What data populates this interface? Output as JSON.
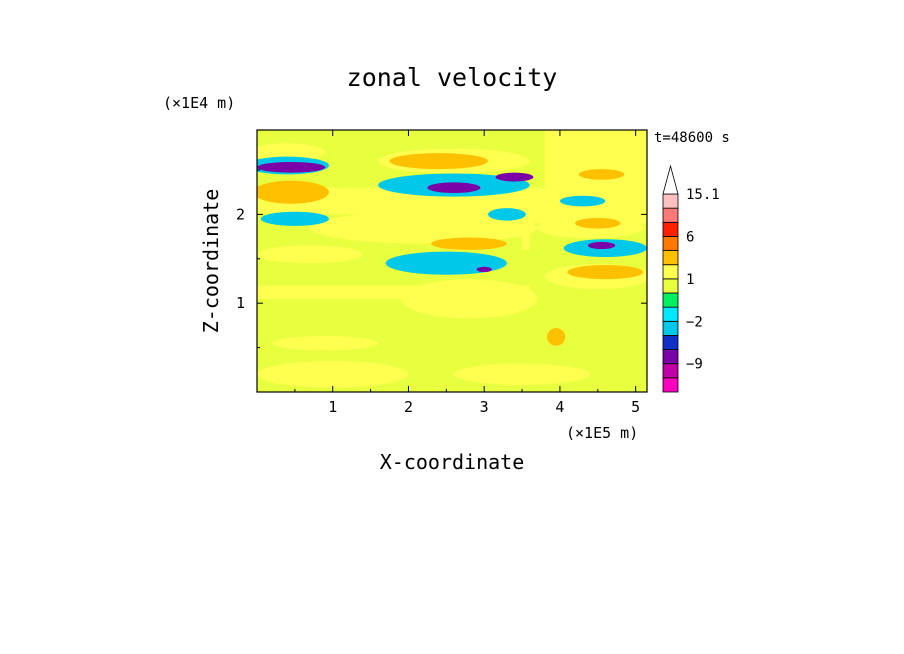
{
  "chart_data": {
    "type": "heatmap",
    "title": "zonal velocity",
    "xlabel": "X-coordinate",
    "ylabel": "Z-coordinate",
    "x_unit": "(×1E5 m)",
    "y_unit": "(×1E4 m)",
    "time_label": "t=48600 s",
    "xlim": [
      0,
      5.15
    ],
    "ylim": [
      0,
      2.95
    ],
    "x_ticks": [
      1,
      2,
      3,
      4,
      5
    ],
    "y_ticks": [
      1,
      2
    ],
    "x_tick_labels": [
      "1",
      "2",
      "3",
      "4",
      "5"
    ],
    "y_tick_labels": [
      "1",
      "2"
    ],
    "colorbar": {
      "levels": [
        -15,
        -12,
        -9,
        -6,
        -3,
        -2,
        -1,
        0,
        1,
        2,
        3,
        6,
        9,
        12,
        15.1
      ],
      "colors": [
        "#ff00c0",
        "#c000a8",
        "#7a00a8",
        "#1030c8",
        "#00c8e8",
        "#00e8ff",
        "#00f060",
        "#e8ff40",
        "#ffff50",
        "#ffc000",
        "#ff7800",
        "#ff2000",
        "#ff7878",
        "#ffc0c0",
        "#ffffff"
      ],
      "labels": [
        {
          "value": 15.1,
          "text": "15.1"
        },
        {
          "value": 6,
          "text": "6"
        },
        {
          "value": 1,
          "text": "1"
        },
        {
          "value": -2,
          "text": "−2"
        },
        {
          "value": -9,
          "text": "−9"
        }
      ]
    },
    "background_value": 1,
    "features": [
      {
        "x": [
          0.0,
          5.15
        ],
        "z": [
          0.0,
          0.1
        ],
        "value": 0.5
      },
      {
        "x": [
          0.0,
          1.6
        ],
        "z": [
          0.1,
          0.38
        ],
        "value": 0.5
      },
      {
        "x": [
          1.4,
          5.15
        ],
        "z": [
          0.1,
          0.5
        ],
        "value": 0.5
      },
      {
        "x": [
          0.0,
          5.15
        ],
        "z": [
          0.38,
          1.05
        ],
        "value": 0.5
      },
      {
        "x": [
          0.0,
          5.15
        ],
        "z": [
          1.2,
          1.6
        ],
        "value": 0.5
      },
      {
        "x": [
          0.0,
          3.5
        ],
        "z": [
          1.6,
          2.0
        ],
        "value": 0.5
      },
      {
        "x": [
          0.0,
          3.8
        ],
        "z": [
          2.3,
          2.95
        ],
        "value": 0.5
      },
      {
        "x": [
          3.6,
          5.15
        ],
        "z": [
          0.8,
          1.9
        ],
        "value": 0.5
      },
      {
        "cx": 1.0,
        "cz": 0.2,
        "rx": 1.0,
        "rz": 0.15,
        "value": 1.5
      },
      {
        "cx": 3.5,
        "cz": 0.2,
        "rx": 0.9,
        "rz": 0.12,
        "value": 1.5
      },
      {
        "cx": 0.9,
        "cz": 0.55,
        "rx": 0.7,
        "rz": 0.08,
        "value": 1.5
      },
      {
        "cx": 2.8,
        "cz": 1.05,
        "rx": 0.9,
        "rz": 0.22,
        "value": 1.5
      },
      {
        "cx": 0.7,
        "cz": 1.55,
        "rx": 0.7,
        "rz": 0.1,
        "value": 1.5
      },
      {
        "cx": 2.2,
        "cz": 1.85,
        "rx": 1.5,
        "rz": 0.18,
        "value": 1.5
      },
      {
        "cx": 0.4,
        "cz": 2.7,
        "rx": 0.5,
        "rz": 0.1,
        "value": 1.5
      },
      {
        "cx": 2.6,
        "cz": 2.6,
        "rx": 1.0,
        "rz": 0.14,
        "value": 1.5
      },
      {
        "cx": 4.5,
        "cz": 2.4,
        "rx": 0.6,
        "rz": 0.1,
        "value": 1.5
      },
      {
        "cx": 4.4,
        "cz": 1.85,
        "rx": 0.7,
        "rz": 0.12,
        "value": 1.5
      },
      {
        "cx": 4.5,
        "cz": 1.3,
        "rx": 0.7,
        "rz": 0.14,
        "value": 1.5
      },
      {
        "cx": 0.45,
        "cz": 2.25,
        "rx": 0.5,
        "rz": 0.13,
        "value": 2.5
      },
      {
        "cx": 2.4,
        "cz": 2.6,
        "rx": 0.65,
        "rz": 0.09,
        "value": 2.5
      },
      {
        "cx": 2.8,
        "cz": 1.67,
        "rx": 0.5,
        "rz": 0.07,
        "value": 2.5
      },
      {
        "cx": 4.55,
        "cz": 2.45,
        "rx": 0.3,
        "rz": 0.06,
        "value": 2.5
      },
      {
        "cx": 4.5,
        "cz": 1.9,
        "rx": 0.3,
        "rz": 0.06,
        "value": 2.5
      },
      {
        "cx": 4.6,
        "cz": 1.35,
        "rx": 0.5,
        "rz": 0.08,
        "value": 2.5
      },
      {
        "cx": 3.95,
        "cz": 0.62,
        "rx": 0.12,
        "rz": 0.1,
        "value": 2.5
      },
      {
        "cx": 0.4,
        "cz": 2.55,
        "rx": 0.55,
        "rz": 0.1,
        "value": -2.5
      },
      {
        "cx": 2.6,
        "cz": 2.33,
        "rx": 1.0,
        "rz": 0.13,
        "value": -2.5
      },
      {
        "cx": 0.5,
        "cz": 1.95,
        "rx": 0.45,
        "rz": 0.08,
        "value": -2.5
      },
      {
        "cx": 2.5,
        "cz": 1.45,
        "rx": 0.8,
        "rz": 0.13,
        "value": -2.5
      },
      {
        "cx": 3.3,
        "cz": 2.0,
        "rx": 0.25,
        "rz": 0.07,
        "value": -2.5
      },
      {
        "cx": 4.3,
        "cz": 2.15,
        "rx": 0.3,
        "rz": 0.06,
        "value": -2.5
      },
      {
        "cx": 4.6,
        "cz": 1.62,
        "rx": 0.55,
        "rz": 0.1,
        "value": -2.5
      },
      {
        "cx": 0.45,
        "cz": 2.53,
        "rx": 0.45,
        "rz": 0.06,
        "value": -7.5
      },
      {
        "cx": 2.6,
        "cz": 2.3,
        "rx": 0.35,
        "rz": 0.06,
        "value": -7.5
      },
      {
        "cx": 3.4,
        "cz": 2.42,
        "rx": 0.25,
        "rz": 0.05,
        "value": -7.5
      },
      {
        "cx": 4.55,
        "cz": 1.65,
        "rx": 0.18,
        "rz": 0.04,
        "value": -7.5
      },
      {
        "cx": 3.0,
        "cz": 1.38,
        "rx": 0.1,
        "rz": 0.03,
        "value": -7.5
      }
    ]
  }
}
